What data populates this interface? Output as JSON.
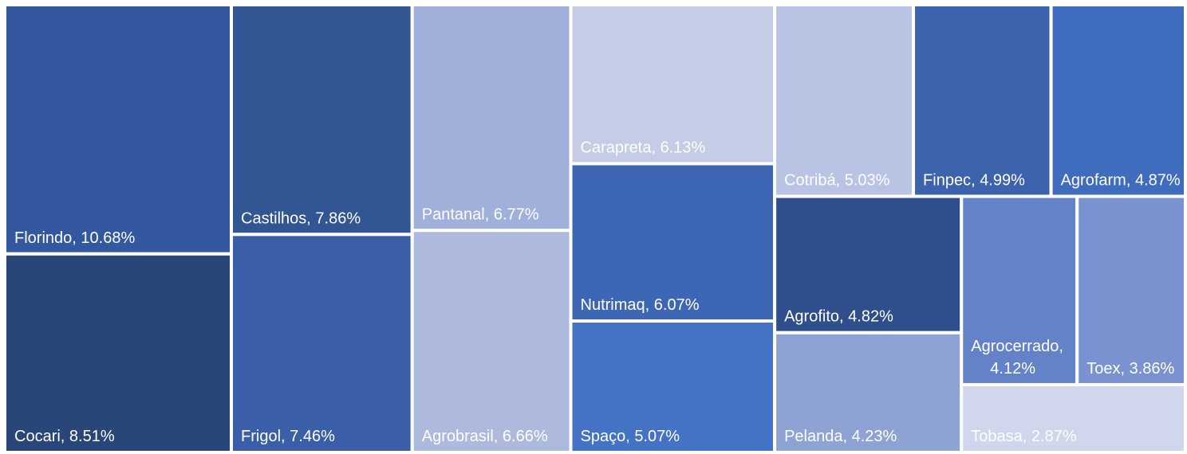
{
  "chart_data": {
    "type": "treemap",
    "categories": [
      "Florindo",
      "Cocari",
      "Castilhos",
      "Frigol",
      "Pantanal",
      "Agrobrasil",
      "Carapreta",
      "Nutrimaq",
      "Spaço",
      "Cotribá",
      "Finpec",
      "Agrofarm",
      "Agrofito",
      "Pelanda",
      "Agrocerrado",
      "Toex",
      "Tobasa"
    ],
    "values": [
      10.68,
      8.51,
      7.86,
      7.46,
      6.77,
      6.66,
      6.13,
      6.07,
      5.07,
      5.03,
      4.99,
      4.87,
      4.82,
      4.23,
      4.12,
      3.86,
      2.87
    ],
    "value_labels": [
      "10.68%",
      "8.51%",
      "7.86%",
      "7.46%",
      "6.77%",
      "6.66%",
      "6.13%",
      "6.07%",
      "5.07%",
      "5.03%",
      "4.99%",
      "4.87%",
      "4.82%",
      "4.23%",
      "4.12%",
      "3.86%",
      "2.87%"
    ],
    "colors": [
      "#3358a0",
      "#284677",
      "#325593",
      "#3a5fa8",
      "#a1afdb",
      "#adbade",
      "#c5cce6",
      "#3d67b4",
      "#4472c4",
      "#b9c3e3",
      "#3d63ac",
      "#3f6cbd",
      "#2f4f8c",
      "#8fa2d4",
      "#6382c8",
      "#7a92d0",
      "#d0d6eb"
    ]
  }
}
